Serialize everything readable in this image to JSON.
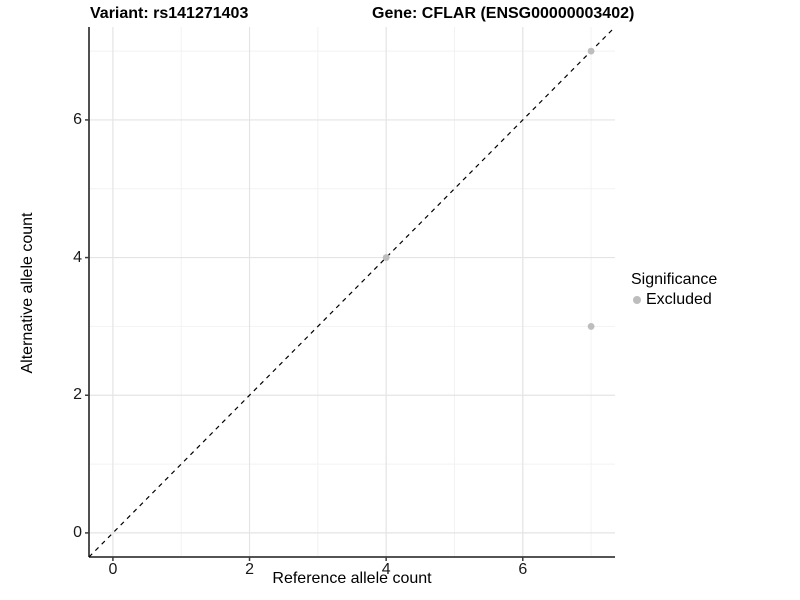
{
  "titles": {
    "variant": "Variant: rs141271403",
    "gene": "Gene: CFLAR (ENSG00000003402)"
  },
  "chart_data": {
    "type": "scatter",
    "xlabel": "Reference allele count",
    "ylabel": "Alternative allele count",
    "xlim": [
      -0.35,
      7.35
    ],
    "ylim": [
      -0.35,
      7.35
    ],
    "xticks": [
      0,
      2,
      4,
      6
    ],
    "yticks": [
      0,
      2,
      4,
      6
    ],
    "grid": {
      "major": [
        0,
        2,
        4,
        6
      ],
      "minor": [
        1,
        3,
        5,
        7
      ],
      "major_color": "#e4e4e4",
      "minor_color": "#f2f2f2"
    },
    "identity_line": {
      "style": "dashed",
      "color": "#000000",
      "x1": -0.35,
      "y1": -0.35,
      "x2": 7.35,
      "y2": 7.35
    },
    "series": [
      {
        "name": "Excluded",
        "color": "#bdbdbd",
        "points": [
          {
            "x": 4,
            "y": 4
          },
          {
            "x": 7,
            "y": 7
          },
          {
            "x": 7,
            "y": 3
          }
        ]
      }
    ],
    "legend": {
      "title": "Significance",
      "position": "right",
      "items": [
        {
          "label": "Excluded",
          "color": "#bdbdbd"
        }
      ]
    }
  },
  "colors": {
    "axis_line": "#3c3c3c",
    "tick_mark": "#3c3c3c",
    "background": "#ffffff",
    "point": "#bdbdbd"
  }
}
